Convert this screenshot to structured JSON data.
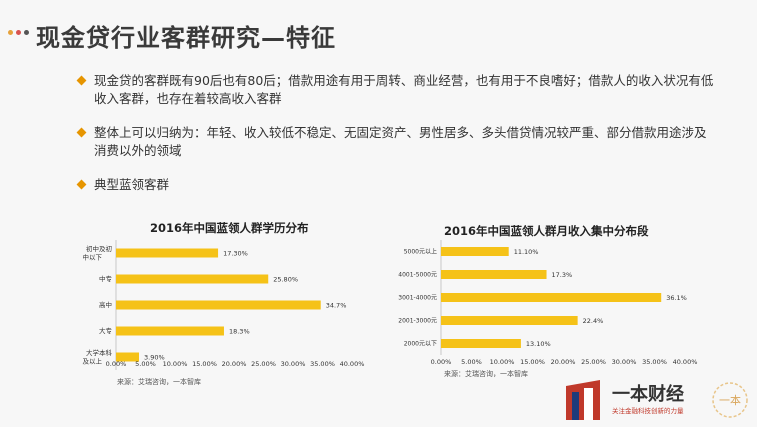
{
  "page": {
    "title": "现金贷行业客群研究—特征",
    "bullets": [
      "现金贷的客群既有90后也有80后；借款用途有用于周转、商业经营，也有用于不良嗜好；借款人的收入状况有低收入客群，也存在着较高收入客群",
      "整体上可以归纳为：年轻、收入较低不稳定、无固定资产、男性居多、多头借贷情况较严重、部分借款用途涉及消费以外的领域",
      "典型蓝领客群"
    ],
    "dot_colors": [
      "#e6a23c",
      "#d9534f",
      "#555555"
    ]
  },
  "chart_data": [
    {
      "type": "bar",
      "orientation": "horizontal",
      "title": "2016年中国蓝领人群学历分布",
      "categories": [
        "初中及初中以下",
        "中专",
        "高中",
        "大专",
        "大学本科及以上"
      ],
      "values": [
        17.3,
        25.8,
        34.7,
        18.3,
        3.9
      ],
      "value_labels": [
        "17.30%",
        "25.80%",
        "34.7%",
        "18.3%",
        "3.90%"
      ],
      "xlim": [
        0,
        40
      ],
      "x_ticks": [
        "0.00%",
        "5.00%",
        "10.00%",
        "15.00%",
        "20.00%",
        "25.00%",
        "30.00%",
        "35.00%",
        "40.00%"
      ],
      "source": "来源：艾瑞咨询，一本智库",
      "color": "#f5c218",
      "grid": false
    },
    {
      "type": "bar",
      "orientation": "horizontal",
      "title": "2016年中国蓝领人群月收入集中分布段",
      "categories": [
        "5000元以上",
        "4001-5000元",
        "3001-4000元",
        "2001-3000元",
        "2000元以下"
      ],
      "values": [
        11.1,
        17.3,
        36.1,
        22.4,
        13.1
      ],
      "value_labels": [
        "11.10%",
        "17.3%",
        "36.1%",
        "22.4%",
        "13.10%"
      ],
      "xlim": [
        0,
        40
      ],
      "x_ticks": [
        "0.00%",
        "5.00%",
        "10.00%",
        "15.00%",
        "20.00%",
        "25.00%",
        "30.00%",
        "35.00%",
        "40.00%"
      ],
      "source": "来源：艾瑞咨询，一本智库",
      "color": "#f5c218",
      "grid": false
    }
  ],
  "brand": {
    "name": "一本财经",
    "slogan": "关注金融科技创新的力量",
    "seal_text": "一本"
  }
}
